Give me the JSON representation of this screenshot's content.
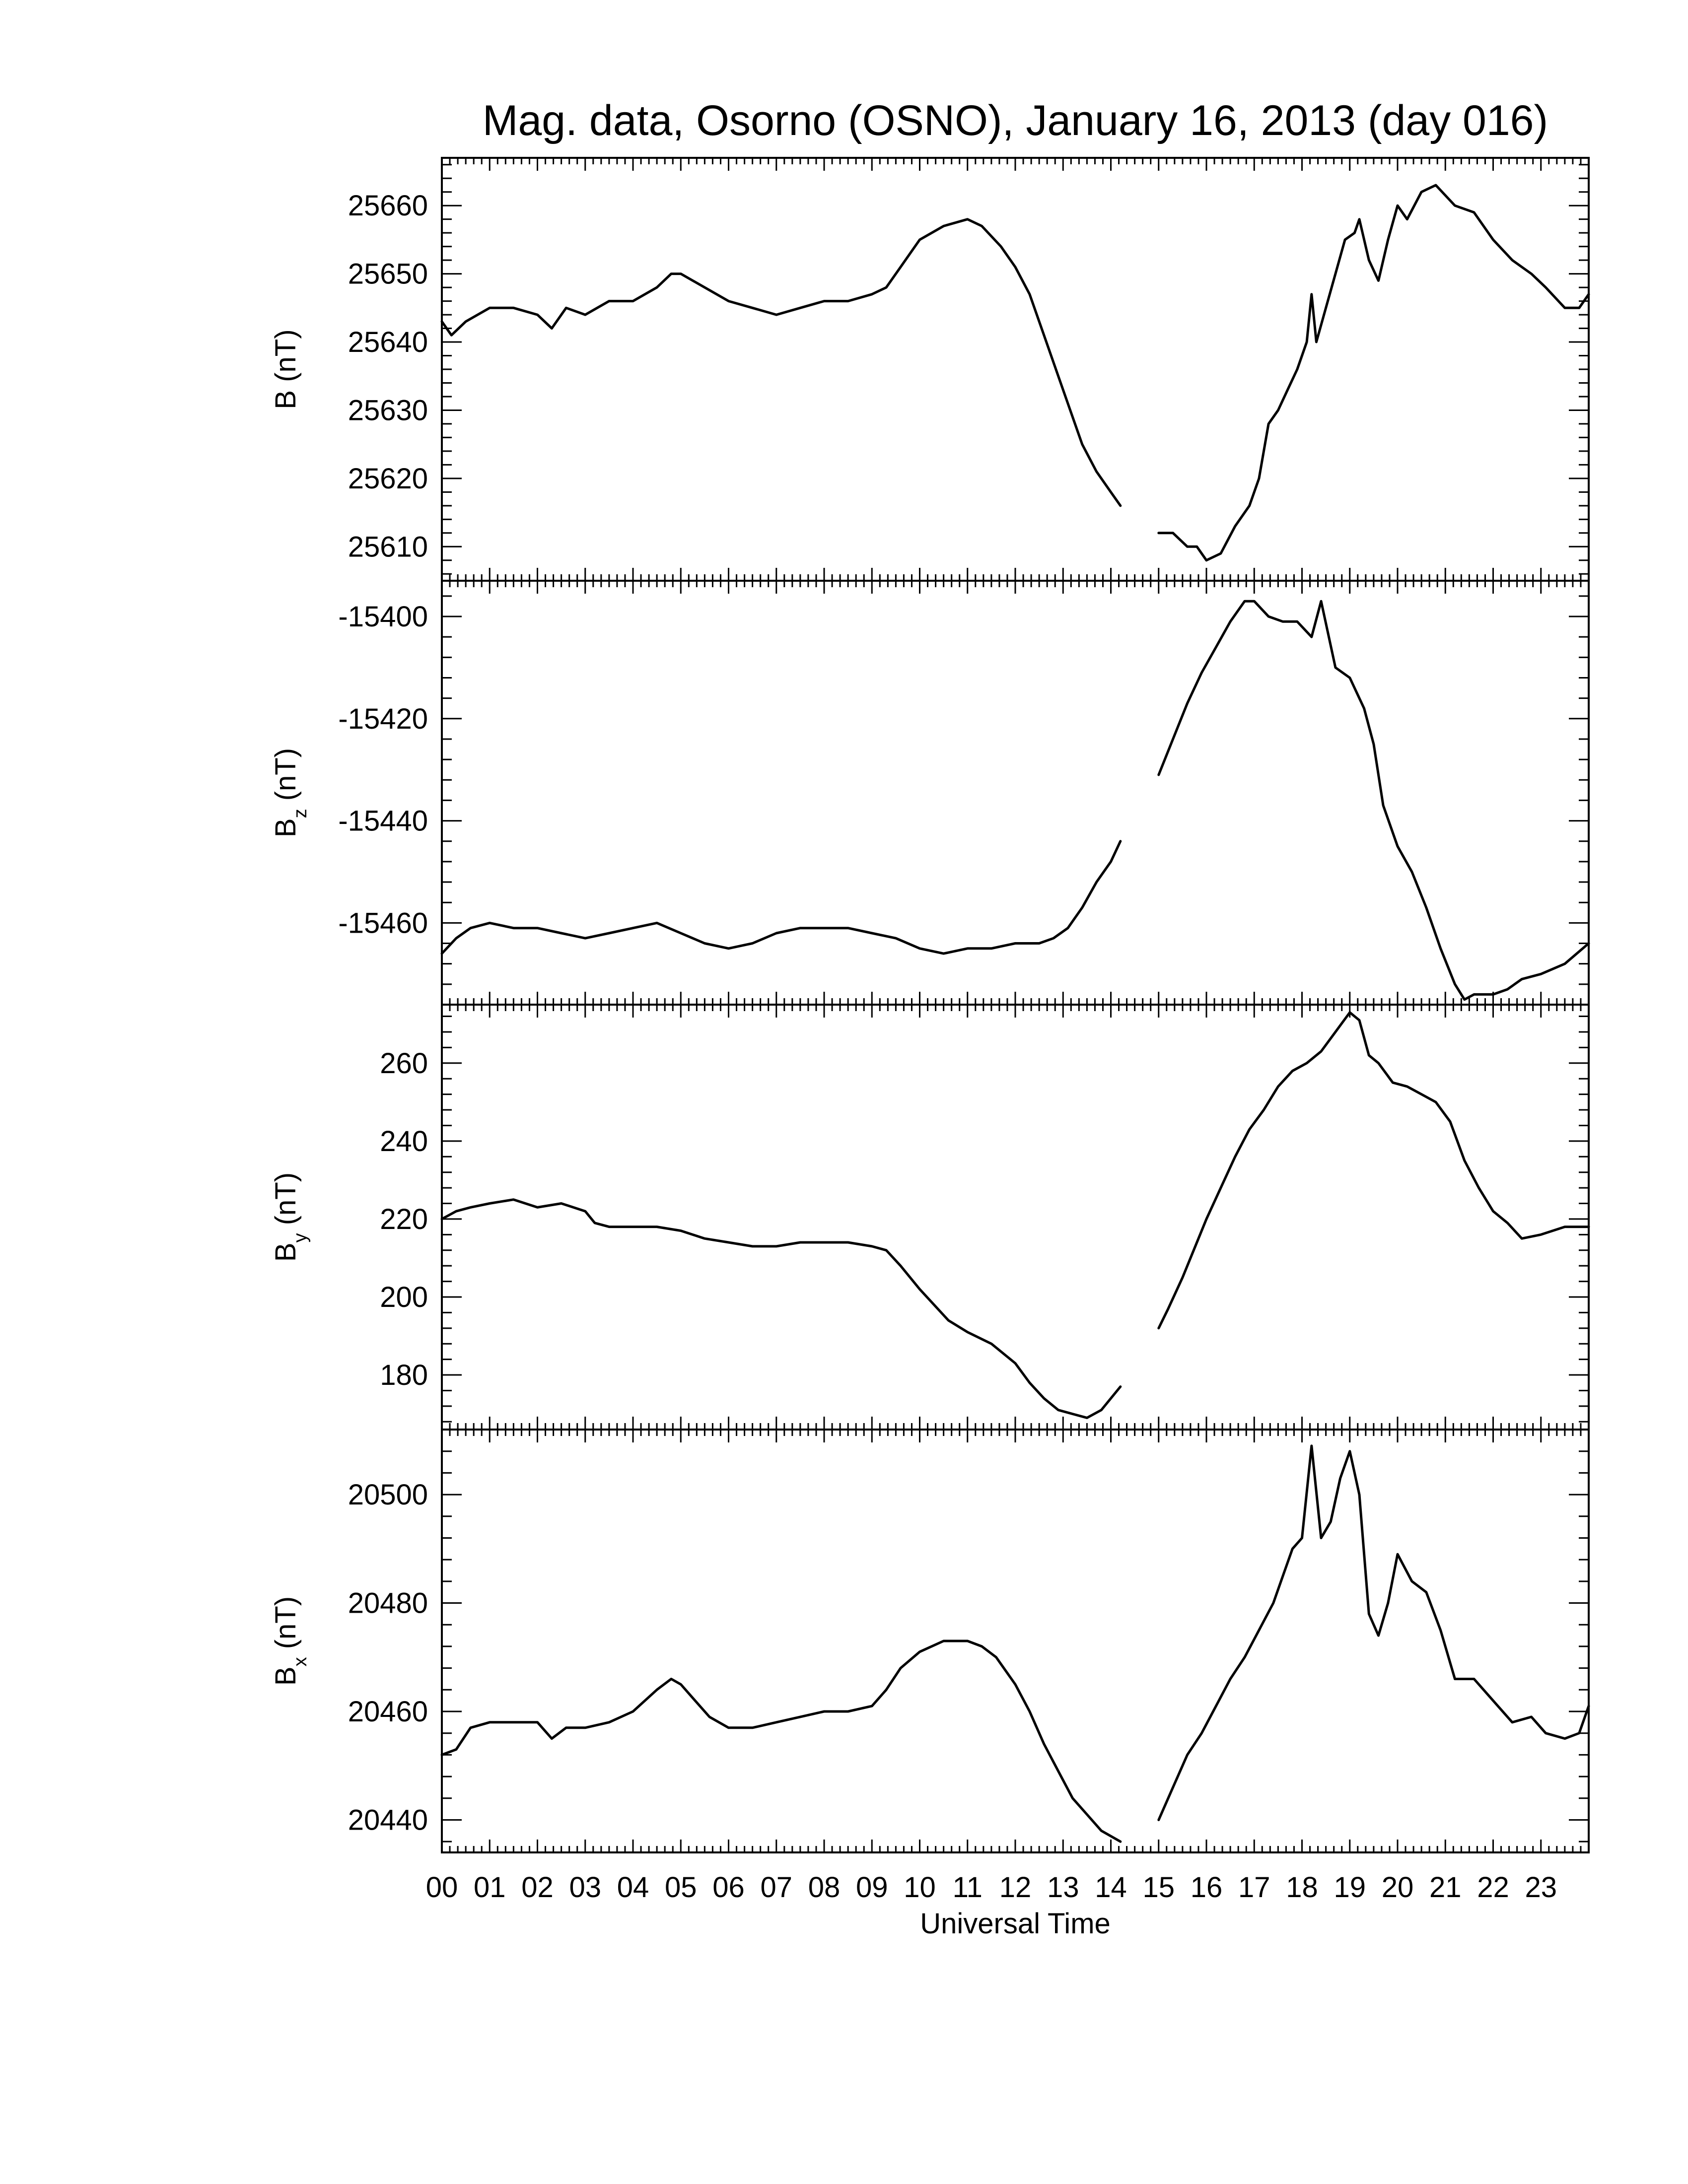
{
  "chart_data": {
    "type": "line",
    "title": "Mag. data, Osorno (OSNO), January 16, 2013 (day 016)",
    "xlabel": "Universal Time",
    "xlim": [
      0,
      24
    ],
    "x_tick_labels": [
      "00",
      "01",
      "02",
      "03",
      "04",
      "05",
      "06",
      "07",
      "08",
      "09",
      "10",
      "11",
      "12",
      "13",
      "14",
      "15",
      "16",
      "17",
      "18",
      "19",
      "20",
      "21",
      "22",
      "23"
    ],
    "panels": [
      {
        "id": "B",
        "ylabel": "B (nT)",
        "ylabel_main": "B",
        "ylabel_sub": "",
        "ylabel_unit": " (nT)",
        "ylim": [
          25605,
          25667
        ],
        "yticks": [
          25610,
          25620,
          25630,
          25640,
          25650,
          25660
        ],
        "segments": [
          {
            "x": [
              0,
              0.2,
              0.5,
              1,
              1.5,
              2,
              2.3,
              2.6,
              3,
              3.5,
              4,
              4.5,
              4.8,
              5,
              5.5,
              6,
              6.5,
              7,
              7.5,
              8,
              8.5,
              9,
              9.3,
              9.6,
              10,
              10.5,
              11,
              11.3,
              11.7,
              12,
              12.3,
              12.6,
              12.9,
              13.2,
              13.4,
              13.7,
              14,
              14.2
            ],
            "y": [
              25643,
              25641,
              25643,
              25645,
              25645,
              25644,
              25642,
              25645,
              25644,
              25646,
              25646,
              25648,
              25650,
              25650,
              25648,
              25646,
              25645,
              25644,
              25645,
              25646,
              25646,
              25647,
              25648,
              25651,
              25655,
              25657,
              25658,
              25657,
              25654,
              25651,
              25647,
              25641,
              25635,
              25629,
              25625,
              25621,
              25618,
              25616
            ]
          },
          {
            "x": [
              15,
              15.3,
              15.6,
              15.8,
              16,
              16.3,
              16.6,
              16.9,
              17.1,
              17.3,
              17.5,
              17.7,
              17.9,
              18.1,
              18.2,
              18.3,
              18.5,
              18.7,
              18.9,
              19.1,
              19.2,
              19.4,
              19.6,
              19.8,
              20,
              20.2,
              20.5,
              20.8,
              21.2,
              21.6,
              22,
              22.4,
              22.8,
              23.1,
              23.5,
              23.8,
              24
            ],
            "y": [
              25612,
              25612,
              25610,
              25610,
              25608,
              25609,
              25613,
              25616,
              25620,
              25628,
              25630,
              25633,
              25636,
              25640,
              25647,
              25640,
              25645,
              25650,
              25655,
              25656,
              25658,
              25652,
              25649,
              25655,
              25660,
              25658,
              25662,
              25663,
              25660,
              25659,
              25655,
              25652,
              25650,
              25648,
              25645,
              25645,
              25647
            ]
          }
        ]
      },
      {
        "id": "Bz",
        "ylabel": "Bz (nT)",
        "ylabel_main": "B",
        "ylabel_sub": "z",
        "ylabel_unit": " (nT)",
        "ylim": [
          -15476,
          -15393
        ],
        "yticks": [
          -15460,
          -15440,
          -15420,
          -15400
        ],
        "segments": [
          {
            "x": [
              0,
              0.3,
              0.6,
              1,
              1.5,
              2,
              2.5,
              3,
              3.5,
              4,
              4.5,
              5,
              5.5,
              6,
              6.5,
              7,
              7.5,
              8,
              8.5,
              9,
              9.5,
              10,
              10.5,
              11,
              11.5,
              12,
              12.5,
              12.8,
              13.1,
              13.4,
              13.7,
              14,
              14.2
            ],
            "y": [
              -15466,
              -15463,
              -15461,
              -15460,
              -15461,
              -15461,
              -15462,
              -15463,
              -15462,
              -15461,
              -15460,
              -15462,
              -15464,
              -15465,
              -15464,
              -15462,
              -15461,
              -15461,
              -15461,
              -15462,
              -15463,
              -15465,
              -15466,
              -15465,
              -15465,
              -15464,
              -15464,
              -15463,
              -15461,
              -15457,
              -15452,
              -15448,
              -15444
            ]
          },
          {
            "x": [
              15,
              15.3,
              15.6,
              15.9,
              16.2,
              16.5,
              16.8,
              17,
              17.3,
              17.6,
              17.9,
              18.2,
              18.4,
              18.7,
              19,
              19.3,
              19.5,
              19.7,
              20,
              20.3,
              20.6,
              20.9,
              21.2,
              21.4,
              21.6,
              21.8,
              22,
              22.3,
              22.6,
              23,
              23.5,
              24
            ],
            "y": [
              -15431,
              -15424,
              -15417,
              -15411,
              -15406,
              -15401,
              -15397,
              -15397,
              -15400,
              -15401,
              -15401,
              -15404,
              -15397,
              -15410,
              -15412,
              -15418,
              -15425,
              -15437,
              -15445,
              -15450,
              -15457,
              -15465,
              -15472,
              -15475,
              -15474,
              -15474,
              -15474,
              -15473,
              -15471,
              -15470,
              -15468,
              -15464
            ]
          }
        ]
      },
      {
        "id": "By",
        "ylabel": "By (nT)",
        "ylabel_main": "B",
        "ylabel_sub": "y",
        "ylabel_unit": " (nT)",
        "ylim": [
          166,
          275
        ],
        "yticks": [
          180,
          200,
          220,
          240,
          260
        ],
        "segments": [
          {
            "x": [
              0,
              0.3,
              0.6,
              1,
              1.5,
              2,
              2.5,
              3,
              3.2,
              3.5,
              4,
              4.5,
              5,
              5.5,
              6,
              6.5,
              7,
              7.5,
              8,
              8.5,
              9,
              9.3,
              9.6,
              10,
              10.3,
              10.6,
              11,
              11.5,
              12,
              12.3,
              12.6,
              12.9,
              13.2,
              13.5,
              13.8,
              14,
              14.2
            ],
            "y": [
              220,
              222,
              223,
              224,
              225,
              223,
              224,
              222,
              219,
              218,
              218,
              218,
              217,
              215,
              214,
              213,
              213,
              214,
              214,
              214,
              213,
              212,
              208,
              202,
              198,
              194,
              191,
              188,
              183,
              178,
              174,
              171,
              170,
              169,
              171,
              174,
              177
            ]
          },
          {
            "x": [
              15,
              15.2,
              15.5,
              15.8,
              16,
              16.3,
              16.6,
              16.9,
              17.2,
              17.5,
              17.8,
              18.1,
              18.4,
              18.7,
              19,
              19.2,
              19.4,
              19.6,
              19.9,
              20.2,
              20.5,
              20.8,
              21.1,
              21.4,
              21.7,
              22,
              22.3,
              22.6,
              23,
              23.5,
              24
            ],
            "y": [
              192,
              197,
              205,
              214,
              220,
              228,
              236,
              243,
              248,
              254,
              258,
              260,
              263,
              268,
              273,
              271,
              262,
              260,
              255,
              254,
              252,
              250,
              245,
              235,
              228,
              222,
              219,
              215,
              216,
              218,
              218
            ]
          }
        ]
      },
      {
        "id": "Bx",
        "ylabel": "Bx (nT)",
        "ylabel_main": "B",
        "ylabel_sub": "x",
        "ylabel_unit": " (nT)",
        "ylim": [
          20434,
          20512
        ],
        "yticks": [
          20440,
          20460,
          20480,
          20500
        ],
        "segments": [
          {
            "x": [
              0,
              0.3,
              0.6,
              1,
              1.5,
              2,
              2.3,
              2.6,
              3,
              3.5,
              4,
              4.5,
              4.8,
              5,
              5.3,
              5.6,
              6,
              6.5,
              7,
              7.5,
              8,
              8.5,
              9,
              9.3,
              9.6,
              10,
              10.5,
              11,
              11.3,
              11.6,
              12,
              12.3,
              12.6,
              12.9,
              13.2,
              13.5,
              13.8,
              14,
              14.2
            ],
            "y": [
              20452,
              20453,
              20457,
              20458,
              20458,
              20458,
              20455,
              20457,
              20457,
              20458,
              20460,
              20464,
              20466,
              20465,
              20462,
              20459,
              20457,
              20457,
              20458,
              20459,
              20460,
              20460,
              20461,
              20464,
              20468,
              20471,
              20473,
              20473,
              20472,
              20470,
              20465,
              20460,
              20454,
              20449,
              20444,
              20441,
              20438,
              20437,
              20436
            ]
          },
          {
            "x": [
              15,
              15.3,
              15.6,
              15.9,
              16.2,
              16.5,
              16.8,
              17.1,
              17.4,
              17.6,
              17.8,
              18,
              18.2,
              18.4,
              18.6,
              18.8,
              19,
              19.2,
              19.4,
              19.6,
              19.8,
              20,
              20.3,
              20.6,
              20.9,
              21.2,
              21.6,
              22,
              22.4,
              22.8,
              23.1,
              23.5,
              23.8,
              24
            ],
            "y": [
              20440,
              20446,
              20452,
              20456,
              20461,
              20466,
              20470,
              20475,
              20480,
              20485,
              20490,
              20492,
              20509,
              20492,
              20495,
              20503,
              20508,
              20500,
              20478,
              20474,
              20480,
              20489,
              20484,
              20482,
              20475,
              20466,
              20466,
              20462,
              20458,
              20459,
              20456,
              20455,
              20456,
              20461
            ]
          }
        ]
      }
    ]
  }
}
